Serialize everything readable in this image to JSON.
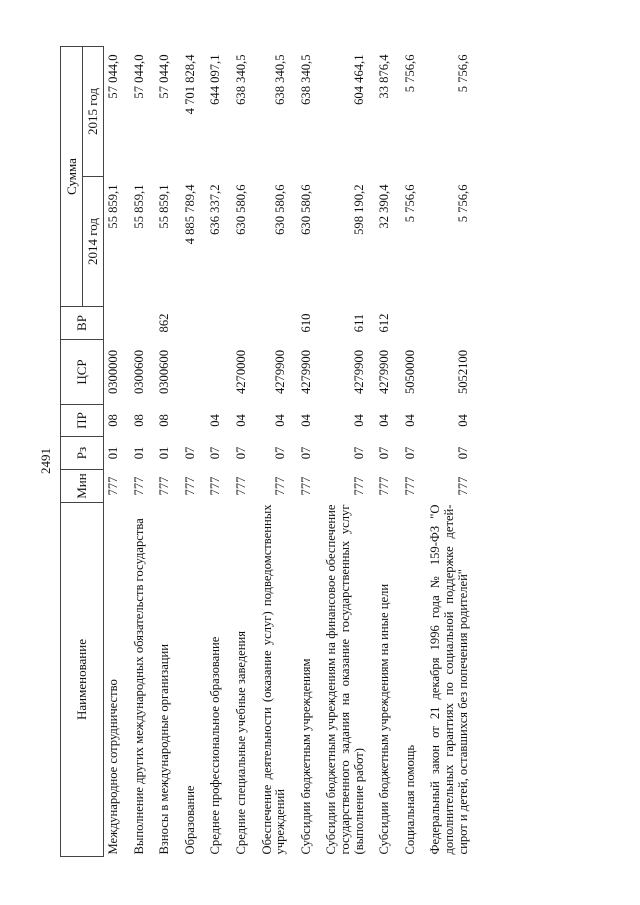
{
  "page_number": "2491",
  "table": {
    "headers": {
      "name": "Наименование",
      "min": "Мин",
      "rz": "Рз",
      "pr": "ПР",
      "csr": "ЦСР",
      "vr": "ВР",
      "sum": "Сумма",
      "y2014": "2014 год",
      "y2015": "2015 год"
    },
    "rows": [
      {
        "name": "Международное сотрудничество",
        "min": "777",
        "rz": "01",
        "pr": "08",
        "csr": "0300000",
        "vr": "",
        "y2014": "55 859,1",
        "y2015": "57 044,0"
      },
      {
        "name": "Выполнение других международных обязательств государства",
        "min": "777",
        "rz": "01",
        "pr": "08",
        "csr": "0300600",
        "vr": "",
        "y2014": "55 859,1",
        "y2015": "57 044,0"
      },
      {
        "name": "Взносы в международные организации",
        "min": "777",
        "rz": "01",
        "pr": "08",
        "csr": "0300600",
        "vr": "862",
        "y2014": "55 859,1",
        "y2015": "57 044,0"
      },
      {
        "name": "Образование",
        "min": "777",
        "rz": "07",
        "pr": "",
        "csr": "",
        "vr": "",
        "y2014": "4 885 789,4",
        "y2015": "4 701 828,4"
      },
      {
        "name": "Среднее профессиональное образование",
        "min": "777",
        "rz": "07",
        "pr": "04",
        "csr": "",
        "vr": "",
        "y2014": "636 337,2",
        "y2015": "644 097,1"
      },
      {
        "name": "Средние специальные учебные заведения",
        "min": "777",
        "rz": "07",
        "pr": "04",
        "csr": "4270000",
        "vr": "",
        "y2014": "630 580,6",
        "y2015": "638 340,5"
      },
      {
        "name": "Обеспечение деятельности (оказание услуг) подведомственных учреждений",
        "min": "777",
        "rz": "07",
        "pr": "04",
        "csr": "4279900",
        "vr": "",
        "y2014": "630 580,6",
        "y2015": "638 340,5"
      },
      {
        "name": "Субсидии бюджетным учреждениям",
        "min": "777",
        "rz": "07",
        "pr": "04",
        "csr": "4279900",
        "vr": "610",
        "y2014": "630 580,6",
        "y2015": "638 340,5"
      },
      {
        "name": "Субсидии бюджетным учреждениям на финансовое обеспечение государственного задания на оказание государственных услуг (выполнение работ)",
        "min": "777",
        "rz": "07",
        "pr": "04",
        "csr": "4279900",
        "vr": "611",
        "y2014": "598 190,2",
        "y2015": "604 464,1"
      },
      {
        "name": "Субсидии бюджетным учреждениям на иные цели",
        "min": "777",
        "rz": "07",
        "pr": "04",
        "csr": "4279900",
        "vr": "612",
        "y2014": "32 390,4",
        "y2015": "33 876,4"
      },
      {
        "name": "Социальная помощь",
        "min": "777",
        "rz": "07",
        "pr": "04",
        "csr": "5050000",
        "vr": "",
        "y2014": "5 756,6",
        "y2015": "5 756,6"
      },
      {
        "name": "Федеральный закон от 21 декабря 1996 года № 159-ФЗ \"О дополнительных гарантиях по социальной поддержке детей-сирот и детей, оставшихся без попечения родителей\"",
        "min": "777",
        "rz": "07",
        "pr": "04",
        "csr": "5052100",
        "vr": "",
        "y2014": "5 756,6",
        "y2015": "5 756,6"
      }
    ]
  }
}
